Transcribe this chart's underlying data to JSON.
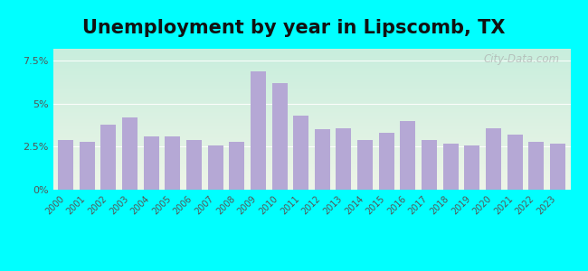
{
  "title": "Unemployment by year in Lipscomb, TX",
  "years": [
    2000,
    2001,
    2002,
    2003,
    2004,
    2005,
    2006,
    2007,
    2008,
    2009,
    2010,
    2011,
    2012,
    2013,
    2014,
    2015,
    2016,
    2017,
    2018,
    2019,
    2020,
    2021,
    2022,
    2023
  ],
  "values": [
    2.9,
    2.8,
    3.8,
    4.2,
    3.1,
    3.1,
    2.9,
    2.6,
    2.8,
    6.9,
    6.2,
    4.3,
    3.5,
    3.6,
    2.9,
    3.3,
    4.0,
    2.9,
    2.7,
    2.6,
    3.6,
    3.2,
    2.8,
    2.7
  ],
  "bar_color": "#b5a8d5",
  "yticks": [
    0,
    2.5,
    5.0,
    7.5
  ],
  "ytick_labels": [
    "0%",
    "2.5%",
    "5%",
    "7.5%"
  ],
  "ylim": [
    0,
    8.2
  ],
  "title_fontsize": 15,
  "tick_fontsize": 8,
  "outer_bg": "#00FFFF",
  "inner_bg_top": "#c8eedd",
  "inner_bg_bottom": "#eef5e8",
  "watermark": "City-Data.com"
}
